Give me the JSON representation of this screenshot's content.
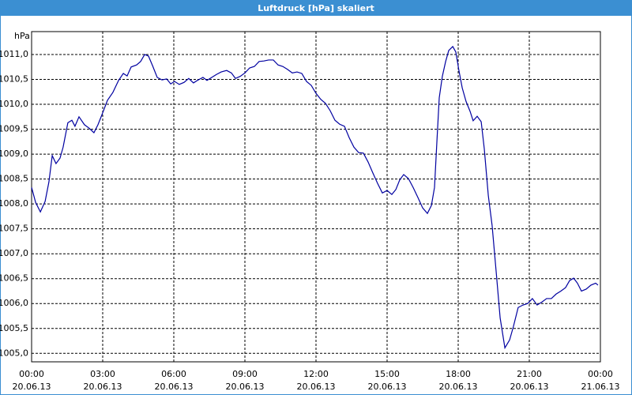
{
  "chart_data": {
    "type": "line",
    "title": "Luftdruck [hPa] skaliert",
    "y_label": "hPa",
    "grid": true,
    "xlim": [
      0,
      24
    ],
    "xticks": [
      {
        "value": 0,
        "label": "00:00",
        "sublabel": "20.06.13"
      },
      {
        "value": 3,
        "label": "03:00",
        "sublabel": "20.06.13"
      },
      {
        "value": 6,
        "label": "06:00",
        "sublabel": "20.06.13"
      },
      {
        "value": 9,
        "label": "09:00",
        "sublabel": "20.06.13"
      },
      {
        "value": 12,
        "label": "12:00",
        "sublabel": "20.06.13"
      },
      {
        "value": 15,
        "label": "15:00",
        "sublabel": "20.06.13"
      },
      {
        "value": 18,
        "label": "18:00",
        "sublabel": "20.06.13"
      },
      {
        "value": 21,
        "label": "21:00",
        "sublabel": "20.06.13"
      },
      {
        "value": 24,
        "label": "00:00",
        "sublabel": "21.06.13"
      }
    ],
    "ylim": [
      1004.83,
      1011.46
    ],
    "yticks": [
      {
        "value": 1005,
        "label": "1005,0"
      },
      {
        "value": 1005.5,
        "label": "1005,5"
      },
      {
        "value": 1006,
        "label": "1006,0"
      },
      {
        "value": 1006.5,
        "label": "1006,5"
      },
      {
        "value": 1007,
        "label": "1007,0"
      },
      {
        "value": 1007.5,
        "label": "1007,5"
      },
      {
        "value": 1008,
        "label": "1008,0"
      },
      {
        "value": 1008.5,
        "label": "1008,5"
      },
      {
        "value": 1009,
        "label": "1009,0"
      },
      {
        "value": 1009.5,
        "label": "1009,5"
      },
      {
        "value": 1010,
        "label": "1010,0"
      },
      {
        "value": 1010.5,
        "label": "1010,5"
      },
      {
        "value": 1011,
        "label": "1011,0"
      }
    ],
    "series": [
      {
        "color": "#0000a0",
        "x": [
          0,
          0.17,
          0.37,
          0.57,
          0.73,
          0.87,
          1.03,
          1.2,
          1.33,
          1.53,
          1.7,
          1.83,
          2.0,
          2.23,
          2.43,
          2.63,
          2.8,
          3.0,
          3.2,
          3.43,
          3.67,
          3.87,
          4.03,
          4.2,
          4.43,
          4.6,
          4.77,
          4.93,
          5.1,
          5.3,
          5.5,
          5.7,
          5.87,
          6.03,
          6.23,
          6.43,
          6.63,
          6.83,
          7.03,
          7.23,
          7.4,
          7.6,
          7.8,
          8.0,
          8.23,
          8.43,
          8.6,
          8.8,
          9.0,
          9.2,
          9.4,
          9.6,
          9.8,
          10.0,
          10.2,
          10.4,
          10.6,
          10.8,
          11.0,
          11.2,
          11.4,
          11.6,
          11.8,
          12.0,
          12.2,
          12.4,
          12.6,
          12.8,
          13.0,
          13.2,
          13.4,
          13.6,
          13.8,
          14.0,
          14.2,
          14.4,
          14.6,
          14.8,
          15.0,
          15.2,
          15.37,
          15.53,
          15.7,
          15.9,
          16.1,
          16.3,
          16.5,
          16.7,
          16.87,
          17.0,
          17.1,
          17.2,
          17.33,
          17.47,
          17.6,
          17.77,
          17.9,
          18.03,
          18.17,
          18.33,
          18.5,
          18.63,
          18.8,
          18.97,
          19.1,
          19.27,
          19.43,
          19.6,
          19.77,
          19.97,
          20.17,
          20.33,
          20.53,
          20.73,
          20.93,
          21.13,
          21.33,
          21.53,
          21.73,
          21.93,
          22.13,
          22.33,
          22.53,
          22.7,
          22.87,
          23.03,
          23.2,
          23.4,
          23.6,
          23.8,
          23.9
        ],
        "values": [
          1008.33,
          1008.03,
          1007.84,
          1008.05,
          1008.44,
          1008.97,
          1008.81,
          1008.92,
          1009.14,
          1009.63,
          1009.68,
          1009.56,
          1009.75,
          1009.59,
          1009.52,
          1009.43,
          1009.59,
          1009.83,
          1010.08,
          1010.24,
          1010.48,
          1010.62,
          1010.57,
          1010.75,
          1010.79,
          1010.86,
          1011.0,
          1010.97,
          1010.78,
          1010.54,
          1010.49,
          1010.51,
          1010.41,
          1010.46,
          1010.4,
          1010.44,
          1010.52,
          1010.43,
          1010.49,
          1010.54,
          1010.48,
          1010.54,
          1010.6,
          1010.65,
          1010.68,
          1010.63,
          1010.52,
          1010.56,
          1010.63,
          1010.73,
          1010.76,
          1010.86,
          1010.87,
          1010.89,
          1010.89,
          1010.79,
          1010.76,
          1010.7,
          1010.63,
          1010.65,
          1010.62,
          1010.46,
          1010.38,
          1010.22,
          1010.1,
          1010.02,
          1009.87,
          1009.68,
          1009.6,
          1009.56,
          1009.33,
          1009.14,
          1009.03,
          1009.02,
          1008.84,
          1008.62,
          1008.41,
          1008.22,
          1008.27,
          1008.19,
          1008.29,
          1008.48,
          1008.59,
          1008.51,
          1008.33,
          1008.13,
          1007.92,
          1007.81,
          1007.97,
          1008.33,
          1009.24,
          1010.13,
          1010.56,
          1010.86,
          1011.08,
          1011.16,
          1011.05,
          1010.68,
          1010.33,
          1010.06,
          1009.86,
          1009.67,
          1009.76,
          1009.65,
          1009.11,
          1008.17,
          1007.57,
          1006.65,
          1005.71,
          1005.11,
          1005.27,
          1005.54,
          1005.92,
          1005.97,
          1006.0,
          1006.1,
          1005.97,
          1006.03,
          1006.1,
          1006.1,
          1006.19,
          1006.25,
          1006.32,
          1006.46,
          1006.51,
          1006.41,
          1006.25,
          1006.29,
          1006.37,
          1006.41,
          1006.37
        ]
      }
    ]
  }
}
